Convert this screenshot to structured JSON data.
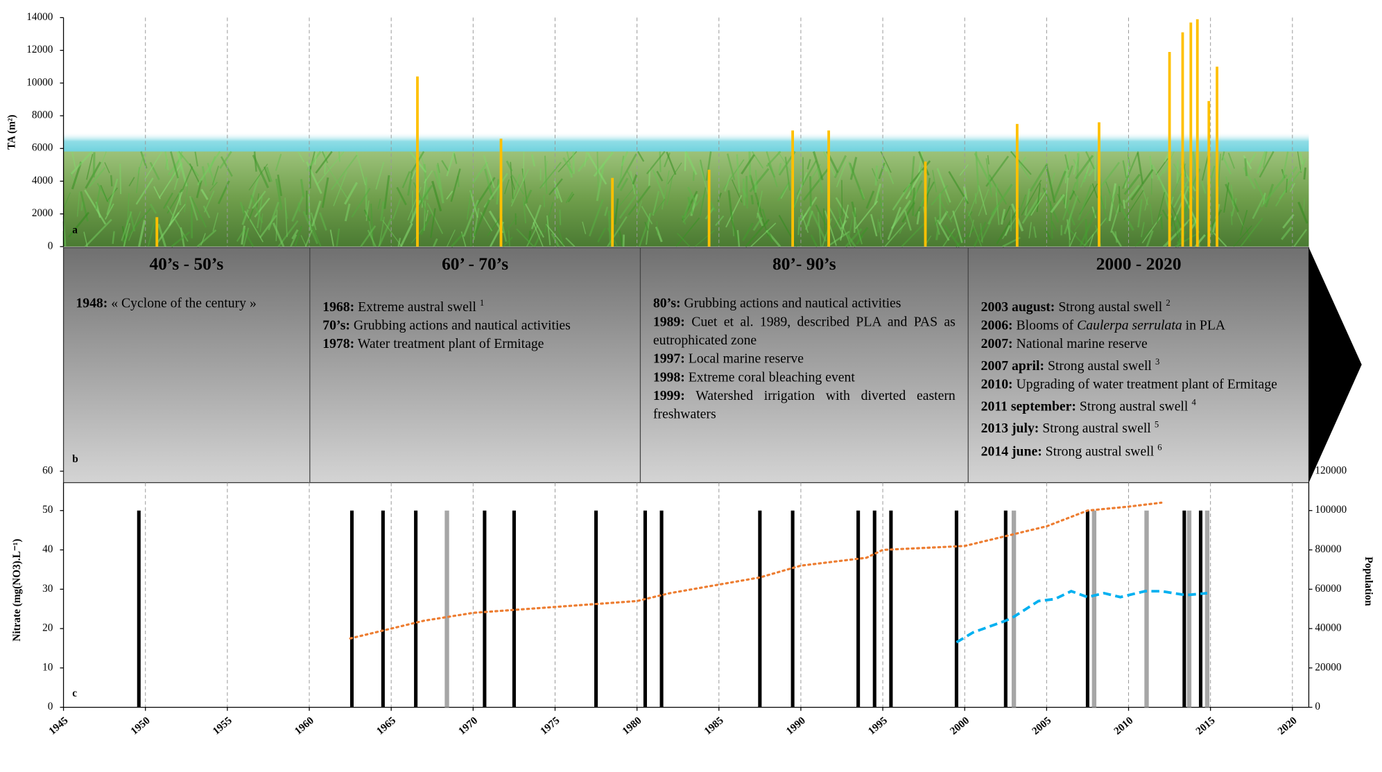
{
  "chart_data": [
    {
      "type": "bar",
      "panel_label": "a",
      "ylabel": "TA (m²)",
      "color": "#ffc000",
      "x": [
        1950.7,
        1966.6,
        1971.7,
        1978.5,
        1984.4,
        1989.5,
        1991.7,
        1997.6,
        2003.2,
        2008.2,
        2012.5,
        2013.3,
        2013.8,
        2014.2,
        2014.9,
        2015.4
      ],
      "values": [
        1800,
        10400,
        6600,
        4200,
        4700,
        7100,
        7100,
        5200,
        7500,
        7600,
        11900,
        13100,
        13700,
        13900,
        8900,
        11000
      ],
      "xlim": [
        1945,
        2021
      ],
      "ylim": [
        0,
        14000
      ],
      "yticks": [
        0,
        2000,
        4000,
        6000,
        8000,
        10000,
        12000,
        14000
      ],
      "grid": true
    },
    {
      "type": "combo",
      "panel_label": "c",
      "ylabel": "Nitrate (mg(NO3).L⁻¹)",
      "y2label": "Population",
      "xlim": [
        1945,
        2021
      ],
      "xticks": [
        1945,
        1950,
        1955,
        1960,
        1965,
        1970,
        1975,
        1980,
        1985,
        1990,
        1995,
        2000,
        2005,
        2010,
        2015,
        2020
      ],
      "ylim": [
        0,
        60
      ],
      "yticks": [
        0,
        10,
        20,
        30,
        40,
        50,
        60
      ],
      "y2lim": [
        0,
        120000
      ],
      "y2ticks": [
        0,
        20000,
        40000,
        60000,
        80000,
        100000,
        120000
      ],
      "grid": true,
      "series": [
        {
          "type": "bar",
          "color": "#000000",
          "x": [
            1949.6,
            1962.6,
            1964.5,
            1966.5,
            1970.7,
            1972.5,
            1977.5,
            1980.5,
            1981.5,
            1987.5,
            1989.5,
            1993.5,
            1994.5,
            1995.5,
            1999.5,
            2002.5,
            2007.5,
            2013.4,
            2014.4
          ],
          "values": [
            50,
            50,
            50,
            50,
            50,
            50,
            50,
            50,
            50,
            50,
            50,
            50,
            50,
            50,
            50,
            50,
            50,
            50,
            50
          ]
        },
        {
          "type": "bar",
          "color": "#a6a6a6",
          "x": [
            1968.4,
            2003.0,
            2007.9,
            2011.1,
            2013.7,
            2014.8
          ],
          "values": [
            50,
            50,
            50,
            50,
            50,
            50
          ]
        },
        {
          "type": "line",
          "axis": "y2",
          "style": "dotted",
          "color": "#ed7d31",
          "x": [
            1962.5,
            1965,
            1967,
            1970,
            1975,
            1980,
            1982,
            1987.5,
            1990,
            1994,
            1995,
            2000,
            2002,
            2005,
            2007.5,
            2010,
            2012
          ],
          "values": [
            35000,
            40000,
            44000,
            48000,
            51000,
            54000,
            58000,
            66000,
            72000,
            76000,
            80000,
            82000,
            86000,
            92000,
            100000,
            102000,
            104000
          ]
        },
        {
          "type": "line",
          "style": "dashed",
          "color": "#00b0f0",
          "x": [
            1999.5,
            2000.5,
            2002.5,
            2003,
            2004.5,
            2005.5,
            2006.5,
            2007.5,
            2008.5,
            2009.5,
            2011,
            2012,
            2013.5,
            2014.8
          ],
          "values": [
            16.5,
            19,
            22,
            23,
            27,
            27.5,
            29.5,
            28,
            29,
            28,
            29.5,
            29.5,
            28.5,
            29
          ]
        }
      ]
    }
  ],
  "timeline": {
    "panel_label": "b",
    "periods": [
      {
        "title": "40’s - 50’s",
        "events": [
          {
            "date": "1948:",
            "text": "« Cyclone of the century »"
          }
        ]
      },
      {
        "title": "60’ - 70’s",
        "events": [
          {
            "date": "1968:",
            "text": "Extreme austral swell",
            "note": "1"
          },
          {
            "date": "70’s:",
            "text": "Grubbing actions and nautical activities"
          },
          {
            "date": "1978:",
            "text": "Water treatment plant of Ermitage"
          }
        ]
      },
      {
        "title": "80’- 90’s",
        "events": [
          {
            "date": "80’s:",
            "text": "Grubbing actions and nautical activities"
          },
          {
            "date": "1989:",
            "text": "Cuet et al. 1989, described PLA and PAS as eutrophicated zone"
          },
          {
            "date": "1997:",
            "text": "Local marine reserve"
          },
          {
            "date": "1998:",
            "text": "Extreme coral bleaching event"
          },
          {
            "date": "1999:",
            "text": "Watershed irrigation with diverted eastern freshwaters"
          }
        ]
      },
      {
        "title": "2000 - 2020",
        "events": [
          {
            "date": "2003 august:",
            "text": "Strong austal swell",
            "note": "2"
          },
          {
            "date": "2006:",
            "text": "Blooms of",
            "italic": "Caulerpa serrulata",
            "tail": "in PLA"
          },
          {
            "date": "2007:",
            "text": "National marine reserve"
          },
          {
            "date": "2007 april:",
            "text": "Strong austal swell",
            "note": "3"
          },
          {
            "date": "2010:",
            "text": "Upgrading of water treatment plant of Ermitage"
          },
          {
            "date": "2011 september:",
            "text": "Strong austral swell",
            "note": "4"
          },
          {
            "date": "2013 july:",
            "text": "Strong austral swell",
            "note": "5"
          },
          {
            "date": "2014 june:",
            "text": "Strong austral swell",
            "note": "6"
          }
        ]
      }
    ]
  }
}
